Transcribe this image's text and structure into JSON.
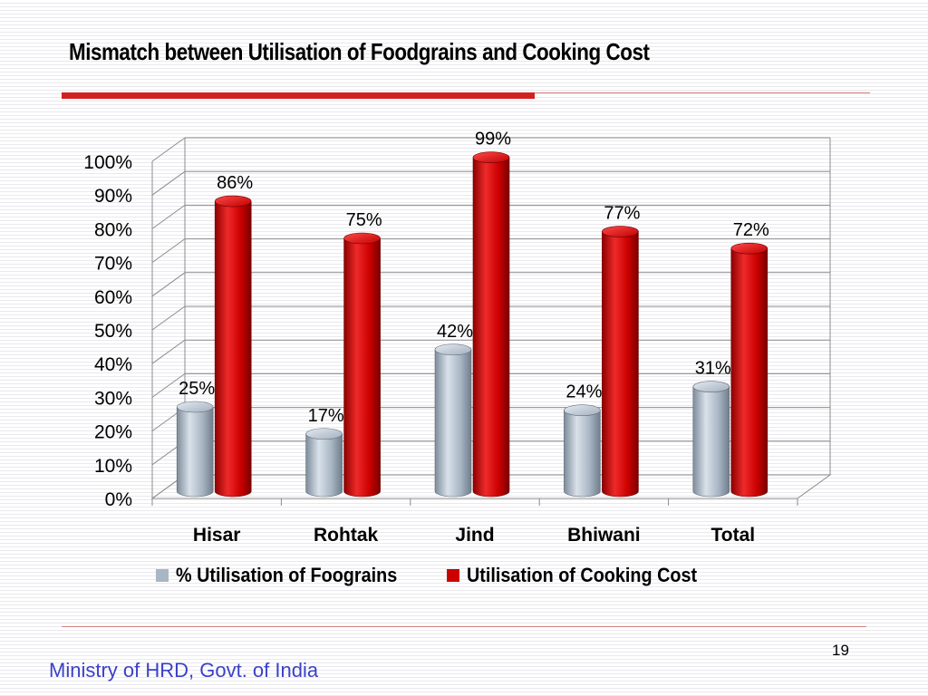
{
  "slide": {
    "title": "Mismatch between Utilisation of Foodgrains and Cooking Cost",
    "footer": "Ministry of HRD, Govt. of India",
    "page_number": "19"
  },
  "colors": {
    "accent_red": "#d21f1f",
    "series_grey": "#a9b6c4",
    "series_red": "#cc0000",
    "footer_blue": "#3b41c8"
  },
  "chart_data": {
    "type": "bar",
    "categories": [
      "Hisar",
      "Rohtak",
      "Jind",
      "Bhiwani",
      "Total"
    ],
    "series": [
      {
        "name": "% Utilisation of Foograins",
        "values": [
          25,
          17,
          42,
          24,
          31
        ],
        "labels": [
          "25%",
          "17%",
          "42%",
          "24%",
          "31%"
        ],
        "color": "#a9b6c4"
      },
      {
        "name": "Utilisation of Cooking Cost",
        "values": [
          86,
          75,
          99,
          77,
          72
        ],
        "labels": [
          "86%",
          "75%",
          "99%",
          "77%",
          "72%"
        ],
        "color": "#cc0000"
      }
    ],
    "yticks": [
      "0%",
      "10%",
      "20%",
      "30%",
      "40%",
      "50%",
      "60%",
      "70%",
      "80%",
      "90%",
      "100%"
    ],
    "ylim": [
      0,
      100
    ],
    "grid": true,
    "legend_position": "bottom",
    "style": "3d-cylinder"
  }
}
